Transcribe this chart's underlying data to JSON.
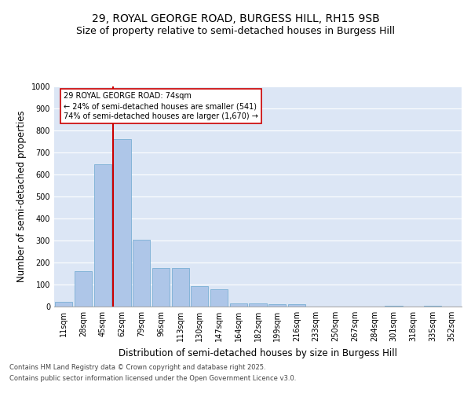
{
  "title": "29, ROYAL GEORGE ROAD, BURGESS HILL, RH15 9SB",
  "subtitle": "Size of property relative to semi-detached houses in Burgess Hill",
  "xlabel": "Distribution of semi-detached houses by size in Burgess Hill",
  "ylabel": "Number of semi-detached properties",
  "categories": [
    "11sqm",
    "28sqm",
    "45sqm",
    "62sqm",
    "79sqm",
    "96sqm",
    "113sqm",
    "130sqm",
    "147sqm",
    "164sqm",
    "182sqm",
    "199sqm",
    "216sqm",
    "233sqm",
    "250sqm",
    "267sqm",
    "284sqm",
    "301sqm",
    "318sqm",
    "335sqm",
    "352sqm"
  ],
  "values": [
    20,
    160,
    645,
    760,
    305,
    175,
    175,
    93,
    80,
    15,
    15,
    10,
    10,
    0,
    0,
    0,
    0,
    5,
    0,
    5,
    0
  ],
  "bar_color": "#aec6e8",
  "bar_edge_color": "#7aafd4",
  "vline_color": "#cc0000",
  "annotation_text": "29 ROYAL GEORGE ROAD: 74sqm\n← 24% of semi-detached houses are smaller (541)\n74% of semi-detached houses are larger (1,670) →",
  "annotation_box_color": "#ffffff",
  "annotation_box_edge": "#cc0000",
  "ylim": [
    0,
    1000
  ],
  "yticks": [
    0,
    100,
    200,
    300,
    400,
    500,
    600,
    700,
    800,
    900,
    1000
  ],
  "background_color": "#dce6f5",
  "footer_line1": "Contains HM Land Registry data © Crown copyright and database right 2025.",
  "footer_line2": "Contains public sector information licensed under the Open Government Licence v3.0.",
  "title_fontsize": 10,
  "subtitle_fontsize": 9,
  "tick_fontsize": 7,
  "label_fontsize": 8.5,
  "footer_fontsize": 6,
  "vline_bar_index": 3
}
